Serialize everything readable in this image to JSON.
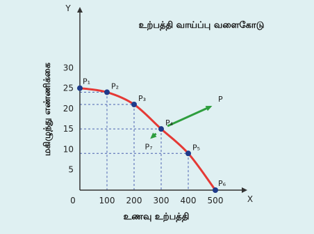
{
  "chart_data": {
    "type": "line",
    "title": "உற்பத்தி வாய்ப்பு வளைகோடு",
    "xlabel": "உணவு உற்பத்தி",
    "ylabel": "மகிழுந்து எண்ணிக்கை",
    "x_axis_letter": "X",
    "y_axis_letter": "Y",
    "origin_label": "0",
    "xlim": [
      0,
      550
    ],
    "ylim": [
      0,
      35
    ],
    "x_ticks": [
      100,
      200,
      300,
      400,
      500
    ],
    "y_ticks": [
      5,
      10,
      15,
      20,
      25,
      30
    ],
    "grid": false,
    "curve_color": "#e53935",
    "point_color": "#1e3a8a",
    "arrow_color": "#2e9e3e",
    "series": [
      {
        "points": [
          {
            "label": "P₁",
            "x": 0,
            "y": 25
          },
          {
            "label": "P₂",
            "x": 100,
            "y": 24
          },
          {
            "label": "P₃",
            "x": 200,
            "y": 21
          },
          {
            "label": "P₄",
            "x": 300,
            "y": 15
          },
          {
            "label": "P₅",
            "x": 400,
            "y": 9
          },
          {
            "label": "P₆",
            "x": 500,
            "y": 0
          }
        ]
      }
    ],
    "annotations": [
      {
        "label": "P",
        "x": 500,
        "y": 21
      },
      {
        "label": "P₇",
        "x": 250,
        "y": 12
      }
    ]
  }
}
